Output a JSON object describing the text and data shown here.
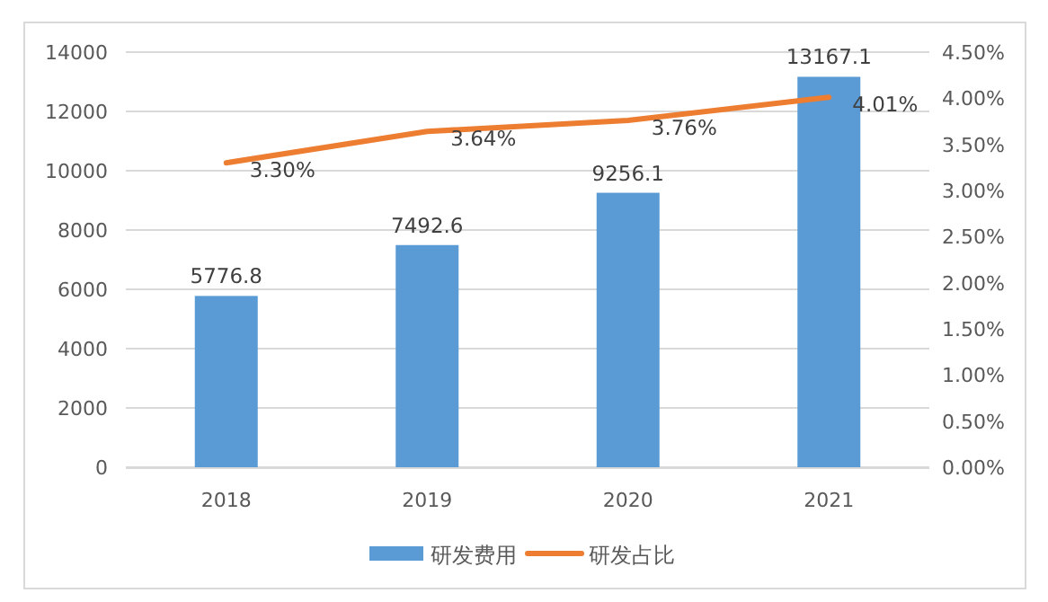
{
  "chart_data": {
    "type": "bar",
    "categories": [
      "2018",
      "2019",
      "2020",
      "2021"
    ],
    "series": [
      {
        "name": "研发费用",
        "color": "#5b9bd5",
        "values": [
          5776.8,
          7492.6,
          9256.1,
          13167.1
        ],
        "value_labels": [
          "5776.8",
          "7492.6",
          "9256.1",
          "13167.1"
        ]
      },
      {
        "name": "研发占比",
        "type": "line",
        "axis": "y2",
        "color": "#ed7d31",
        "values": [
          3.3,
          3.64,
          3.76,
          4.01
        ],
        "value_labels": [
          "3.30%",
          "3.64%",
          "3.76%",
          "4.01%"
        ]
      }
    ],
    "ylim": [
      0,
      14000
    ],
    "yticks": [
      0,
      2000,
      4000,
      6000,
      8000,
      10000,
      12000,
      14000
    ],
    "y2lim": [
      0,
      4.5
    ],
    "y2ticks": [
      {
        "value": 0,
        "label": "0.00%"
      },
      {
        "value": 0.5,
        "label": "0.50%"
      },
      {
        "value": 1,
        "label": "1.00%"
      },
      {
        "value": 1.5,
        "label": "1.50%"
      },
      {
        "value": 2,
        "label": "2.00%"
      },
      {
        "value": 2.5,
        "label": "2.50%"
      },
      {
        "value": 3,
        "label": "3.00%"
      },
      {
        "value": 3.5,
        "label": "3.50%"
      },
      {
        "value": 4,
        "label": "4.00%"
      },
      {
        "value": 4.5,
        "label": "4.50%"
      }
    ],
    "grid": "y",
    "legend": "bottom",
    "marker": "none",
    "line_style": "solid"
  }
}
